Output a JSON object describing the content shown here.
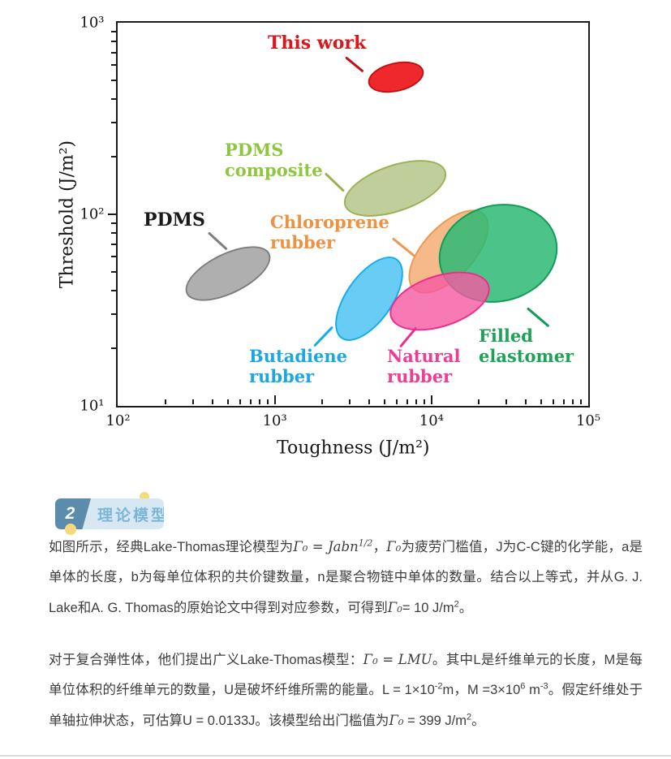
{
  "section_header": {
    "number": "2",
    "title": "理论模型",
    "accent_color": "#5b8cab",
    "panel_color": "#d8e8f2",
    "title_color": "#7bb6d8",
    "dot_color": "#f7d87b"
  },
  "article": {
    "paragraphs": [
      [
        {
          "t": "如图所示，经典Lake-Thomas理论模型为"
        },
        {
          "t": "Γ₀ = Jabn",
          "m": true
        },
        {
          "t": "1/2",
          "m": true,
          "sup": true
        },
        {
          "t": "，"
        },
        {
          "t": "Γ₀",
          "m": true
        },
        {
          "t": "为疲劳门槛值，J为C-C键的化学能，a是单体的长度，b为每单位体积的共价键数量，n是聚合物链中单体的数量。结合以上等式，并从G. J. Lake和A. G. Thomas的原始论文中得到对应参数，可得到"
        },
        {
          "t": "Γ₀",
          "m": true
        },
        {
          "t": "= 10 J/m"
        },
        {
          "t": "2",
          "sup": true
        },
        {
          "t": "。"
        }
      ],
      [
        {
          "t": "对于复合弹性体，他们提出广义Lake-Thomas模型："
        },
        {
          "t": "Γ₀ = LMU",
          "m": true
        },
        {
          "t": "。其中L是纤维单元的长度，M是每单位体积的纤维单元的数量，U是破坏纤维所需的能量。L = 1×10"
        },
        {
          "t": "-2",
          "sup": true
        },
        {
          "t": "m，M =3×10"
        },
        {
          "t": "6",
          "sup": true
        },
        {
          "t": " m"
        },
        {
          "t": "-3",
          "sup": true
        },
        {
          "t": "。假定纤维处于单轴拉伸状态，可估算U = 0.0133J。该模型给出门槛值为"
        },
        {
          "t": "Γ₀",
          "m": true
        },
        {
          "t": " = 399 J/m"
        },
        {
          "t": "2",
          "sup": true
        },
        {
          "t": "。"
        }
      ]
    ]
  },
  "chart_data": {
    "type": "scatter",
    "subtype": "ellipse-regions",
    "xlabel": "Toughness (J/m²)",
    "ylabel": "Threshold (J/m²)",
    "xscale": "log",
    "yscale": "log",
    "xlim": [
      100,
      100000
    ],
    "ylim": [
      10,
      1000
    ],
    "grid": false,
    "x_tick_values": [
      100,
      1000,
      10000,
      100000
    ],
    "x_tick_labels": [
      "10²",
      "10³",
      "10⁴",
      "10⁵"
    ],
    "y_tick_values": [
      10,
      100,
      1000
    ],
    "y_tick_labels": [
      "10¹",
      "10²",
      "10³"
    ],
    "frame_color": "#1b1b1b",
    "series": [
      {
        "id": "this-work",
        "label": "This work",
        "label_lines": [
          "This work"
        ],
        "x_center": 5800,
        "y_center": 530,
        "x_range": [
          3900,
          8500
        ],
        "y_range": [
          460,
          620
        ],
        "tilt_deg": -13,
        "fill": "#ee1d20",
        "stroke": "#c11216",
        "fill_opacity": 0.95,
        "label_color": "#d9181c"
      },
      {
        "id": "pdms-composite",
        "label": "PDMS composite",
        "label_lines": [
          "PDMS",
          "composite"
        ],
        "x_center": 5700,
        "y_center": 140,
        "x_range": [
          2700,
          12000
        ],
        "y_range": [
          105,
          185
        ],
        "tilt_deg": -19,
        "fill": "#b5c58a",
        "stroke": "#9cb153",
        "fill_opacity": 0.85,
        "label_color": "#8dc63f"
      },
      {
        "id": "pdms",
        "label": "PDMS",
        "label_lines": [
          "PDMS"
        ],
        "x_center": 490,
        "y_center": 50,
        "x_range": [
          260,
          930
        ],
        "y_range": [
          36,
          69
        ],
        "tilt_deg": -26,
        "fill": "#ababab",
        "stroke": "#7e7e7e",
        "fill_opacity": 0.95,
        "label_color": "#1a1a1a"
      },
      {
        "id": "chloroprene-rubber",
        "label": "Chloroprene rubber",
        "label_lines": [
          "Chloroprene",
          "rubber"
        ],
        "x_center": 12500,
        "y_center": 65,
        "x_range": [
          7200,
          22000
        ],
        "y_range": [
          39,
          107
        ],
        "tilt_deg": -47,
        "fill": "#f5ad76",
        "stroke": "#eb9a50",
        "fill_opacity": 0.85,
        "label_color": "#ef9140"
      },
      {
        "id": "filled-elastomer",
        "label": "Filled elastomer",
        "label_lines": [
          "Filled",
          "elastomer"
        ],
        "x_center": 26000,
        "y_center": 64,
        "x_range": [
          11000,
          60000
        ],
        "y_range": [
          36,
          112
        ],
        "tilt_deg": -14,
        "fill": "#2db873",
        "stroke": "#0f9e57",
        "fill_opacity": 0.85,
        "label_color": "#1ca355"
      },
      {
        "id": "butadiene-rubber",
        "label": "Butadiene rubber",
        "label_lines": [
          "Butadiene",
          "rubber"
        ],
        "x_center": 3900,
        "y_center": 37,
        "x_range": [
          2300,
          6700
        ],
        "y_range": [
          23,
          61
        ],
        "tilt_deg": -55,
        "fill": "#4fc3f3",
        "stroke": "#14adeb",
        "fill_opacity": 0.85,
        "label_color": "#1ba7e2"
      },
      {
        "id": "natural-rubber",
        "label": "Natural rubber",
        "label_lines": [
          "Natural",
          "rubber"
        ],
        "x_center": 11000,
        "y_center": 36,
        "x_range": [
          5400,
          22000
        ],
        "y_range": [
          24,
          54
        ],
        "tilt_deg": -18,
        "fill": "#f659a2",
        "stroke": "#f02b8b",
        "fill_opacity": 0.8,
        "label_color": "#ee3d95"
      }
    ]
  }
}
